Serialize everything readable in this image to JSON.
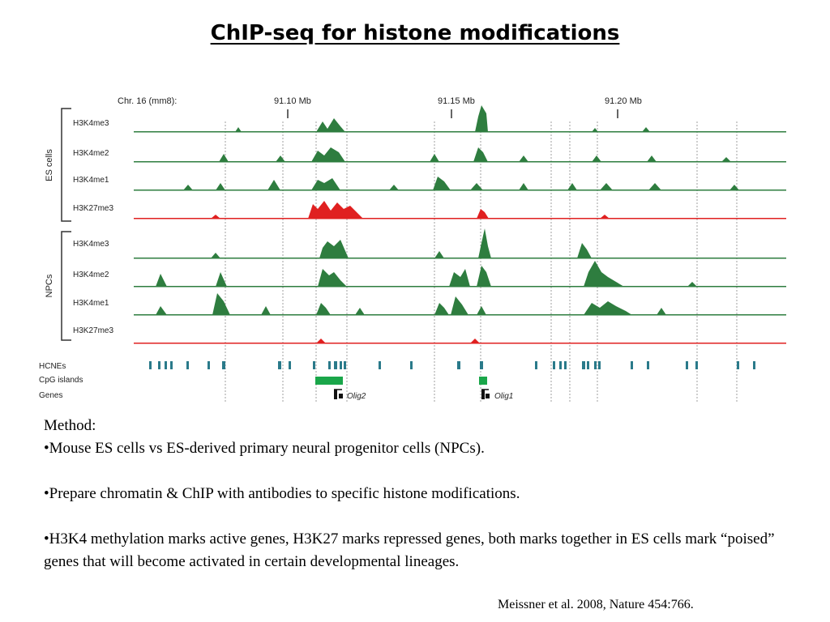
{
  "title": "ChIP-seq for histone modifications",
  "figure": {
    "chrom_label": "Chr. 16 (mm8):",
    "coords": [
      "91.10 Mb",
      "91.15 Mb",
      "91.20 Mb"
    ],
    "group_es": "ES cells",
    "group_npc": "NPCs",
    "es_tracks": [
      "H3K4me3",
      "H3K4me2",
      "H3K4me1",
      "H3K27me3"
    ],
    "npc_tracks": [
      "H3K4me3",
      "H3K4me2",
      "H3K4me1",
      "H3K27me3"
    ],
    "annotation_tracks": [
      "HCNEs",
      "CpG islands",
      "Genes"
    ],
    "genes": [
      "Olig2",
      "Olig1"
    ],
    "colors": {
      "active": "#2e7d3f",
      "repressive": "#e02020",
      "hcne": "#2a7a8a",
      "cpg": "#1aa64a"
    }
  },
  "method": {
    "heading": "Method:",
    "bullet1": "•Mouse ES cells vs ES-derived primary neural progenitor cells (NPCs).",
    "bullet2": "•Prepare chromatin & ChIP with antibodies to specific histone modifications.",
    "bullet3": "•H3K4 methylation marks active genes, H3K27 marks repressed genes, both marks together in ES cells mark “poised” genes that will become activated in certain developmental lineages."
  },
  "citation": "Meissner et al. 2008, Nature 454:766."
}
